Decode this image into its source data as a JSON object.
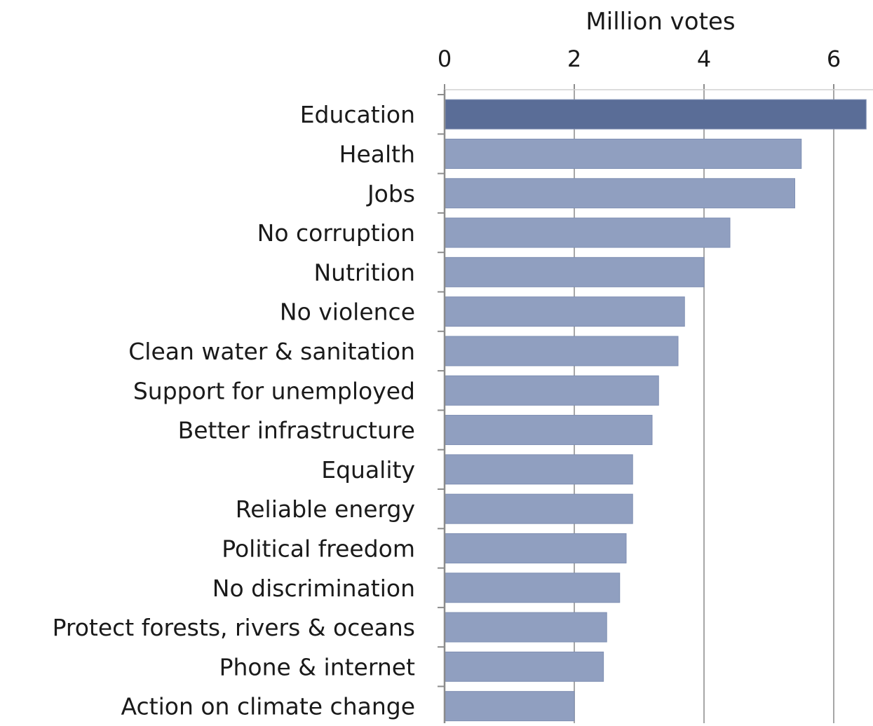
{
  "chart_data": {
    "type": "bar",
    "orientation": "horizontal",
    "title": "",
    "xlabel": "Million votes",
    "ylabel": "",
    "xlim": [
      0,
      6.5
    ],
    "x_ticks": [
      0,
      2,
      4,
      6
    ],
    "x_axis_position": "top",
    "grid": true,
    "categories": [
      "Education",
      "Health",
      "Jobs",
      "No corruption",
      "Nutrition",
      "No violence",
      "Clean water & sanitation",
      "Support for unemployed",
      "Better infrastructure",
      "Equality",
      "Reliable energy",
      "Political freedom",
      "No discrimination",
      "Protect forests, rivers & oceans",
      "Phone & internet",
      "Action on climate change"
    ],
    "values": [
      6.5,
      5.5,
      5.4,
      4.4,
      4.0,
      3.7,
      3.6,
      3.3,
      3.2,
      2.9,
      2.9,
      2.8,
      2.7,
      2.5,
      2.45,
      2.0
    ],
    "colors": {
      "highlight_bar": "#5a6d97",
      "bar": "#909fc0",
      "bar_edge": "#7f8fb3",
      "gridline": "#a6a6a6",
      "axis": "#8c8c8c",
      "text": "#1a1a1a"
    }
  }
}
